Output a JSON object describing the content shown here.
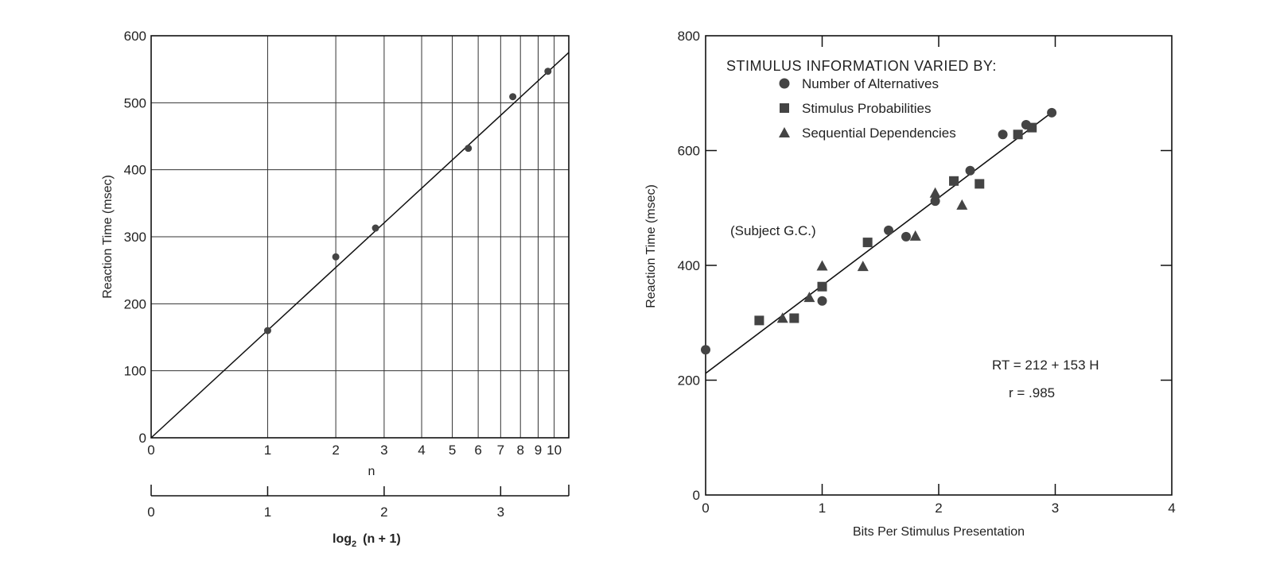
{
  "chart_data": [
    {
      "type": "scatter",
      "ylabel": "Reaction Time (msec)",
      "ylim": [
        0,
        600
      ],
      "yticks": [
        0,
        100,
        200,
        300,
        400,
        500,
        600
      ],
      "x_scale": "log2(n+1)",
      "xlim_bits": [
        0,
        3.585
      ],
      "n_axis": {
        "label": "n",
        "ticks": [
          0,
          1,
          2,
          3,
          4,
          5,
          6,
          7,
          8,
          9,
          10
        ]
      },
      "bits_axis": {
        "label": "log",
        "label_sub": "2",
        "label_rest": "(n + 1)",
        "ticks": [
          0,
          1,
          2,
          3
        ]
      },
      "grid": true,
      "series": [
        {
          "marker": "circle",
          "points": [
            {
              "n": 1,
              "y": 160
            },
            {
              "n": 2,
              "y": 270
            },
            {
              "n": 2.8,
              "y": 313
            },
            {
              "n": 5.6,
              "y": 432
            },
            {
              "n": 7.6,
              "y": 509
            },
            {
              "n": 9.6,
              "y": 547
            }
          ]
        }
      ],
      "fit_line": {
        "x_bits": [
          0,
          3.585
        ],
        "y": [
          0,
          575
        ]
      }
    },
    {
      "type": "scatter",
      "xlabel": "Bits Per Stimulus Presentation",
      "ylabel": "Reaction Time (msec)",
      "xlim": [
        0,
        4
      ],
      "ylim": [
        0,
        800
      ],
      "xticks": [
        0,
        1,
        2,
        3,
        4
      ],
      "yticks": [
        0,
        200,
        400,
        600,
        800
      ],
      "grid": false,
      "legend": {
        "title": "STIMULUS INFORMATION VARIED BY:",
        "placement": "top-left",
        "entries": [
          {
            "label": "Number of Alternatives",
            "marker": "circle"
          },
          {
            "label": "Stimulus Probabilities",
            "marker": "square"
          },
          {
            "label": "Sequential Dependencies",
            "marker": "triangle"
          }
        ]
      },
      "annotations": [
        "(Subject G.C.)",
        "RT =  212 + 153 H",
        "r =  .985"
      ],
      "series": [
        {
          "name": "Number of Alternatives",
          "marker": "circle",
          "x": [
            0,
            1.0,
            1.57,
            1.72,
            1.97,
            2.27,
            2.55,
            2.75,
            2.97
          ],
          "y": [
            253,
            338,
            461,
            450,
            512,
            565,
            628,
            645,
            666
          ]
        },
        {
          "name": "Stimulus Probabilities",
          "marker": "square",
          "x": [
            0.46,
            0.76,
            1.0,
            1.39,
            2.13,
            2.35,
            2.68,
            2.8
          ],
          "y": [
            304,
            308,
            363,
            440,
            547,
            542,
            628,
            640
          ]
        },
        {
          "name": "Sequential Dependencies",
          "marker": "triangle",
          "x": [
            0.66,
            0.89,
            1.0,
            1.35,
            1.8,
            1.97,
            2.2
          ],
          "y": [
            307,
            343,
            398,
            397,
            450,
            525,
            504
          ]
        }
      ],
      "fit_line": {
        "x": [
          0,
          3.0
        ],
        "y": [
          212,
          671
        ]
      }
    }
  ]
}
